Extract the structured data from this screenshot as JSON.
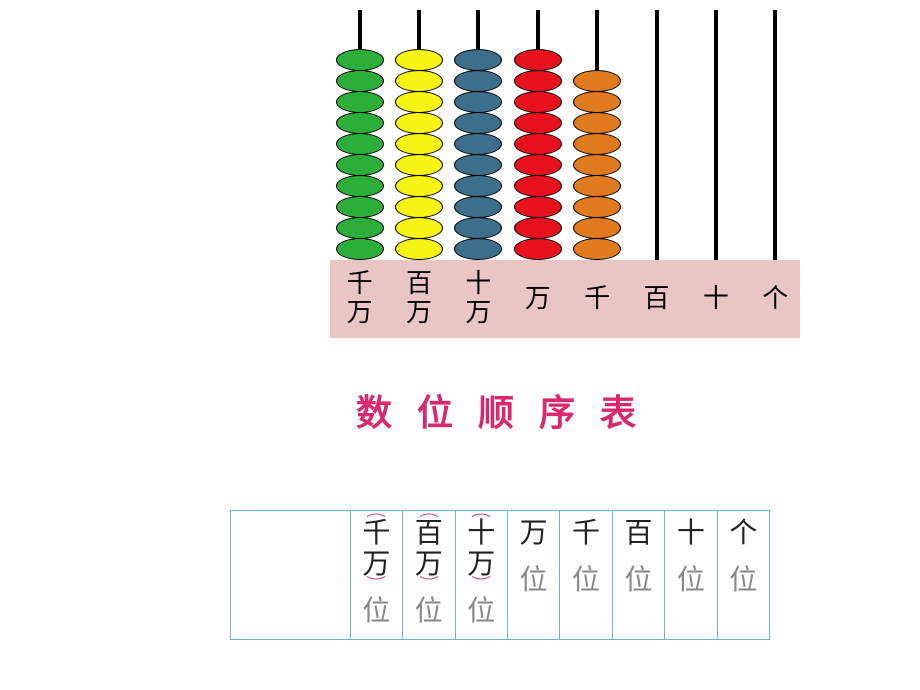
{
  "abacus": {
    "rods": [
      {
        "label": "千万",
        "bead_count": 10,
        "bead_color": "#2bae3a",
        "bead_border": "#000000"
      },
      {
        "label": "百万",
        "bead_count": 10,
        "bead_color": "#f7f314",
        "bead_border": "#000000"
      },
      {
        "label": "十万",
        "bead_count": 10,
        "bead_color": "#3b6f8c",
        "bead_border": "#000000"
      },
      {
        "label": "万",
        "bead_count": 10,
        "bead_color": "#e8121e",
        "bead_border": "#000000"
      },
      {
        "label": "千",
        "bead_count": 9,
        "bead_color": "#e07a1e",
        "bead_border": "#000000"
      },
      {
        "label": "百",
        "bead_count": 0,
        "bead_color": "#000000",
        "bead_border": "#000000"
      },
      {
        "label": "十",
        "bead_count": 0,
        "bead_color": "#000000",
        "bead_border": "#000000"
      },
      {
        "label": "个",
        "bead_count": 0,
        "bead_color": "#000000",
        "bead_border": "#000000"
      }
    ],
    "rod_line_color": "#000000",
    "rod_line_width": 4,
    "label_bar_bg": "#e9c6c3",
    "label_fontsize": 26,
    "label_color": "#000000",
    "bead_width": 48,
    "bead_height": 22
  },
  "title": {
    "text": "数 位 顺 序 表",
    "color": "#d9286d",
    "fontsize": 36,
    "letter_spacing": 8
  },
  "place_value_table": {
    "border_color": "#6fb5c9",
    "cell_bg": "#ffffff",
    "cells": [
      {
        "top": "千万",
        "bottom": "位",
        "bracket": true
      },
      {
        "top": "百万",
        "bottom": "位",
        "bracket": true
      },
      {
        "top": "十万",
        "bottom": "位",
        "bracket": true
      },
      {
        "top": "万",
        "bottom": "位",
        "bracket": false
      },
      {
        "top": "千",
        "bottom": "位",
        "bracket": false
      },
      {
        "top": "百",
        "bottom": "位",
        "bracket": false
      },
      {
        "top": "十",
        "bottom": "位",
        "bracket": false
      },
      {
        "top": "个",
        "bottom": "位",
        "bracket": false
      }
    ],
    "top_fontsize": 28,
    "top_color": "#222222",
    "bottom_fontsize": 28,
    "bottom_color": "#888888",
    "bracket_color": "#d14d7a"
  }
}
